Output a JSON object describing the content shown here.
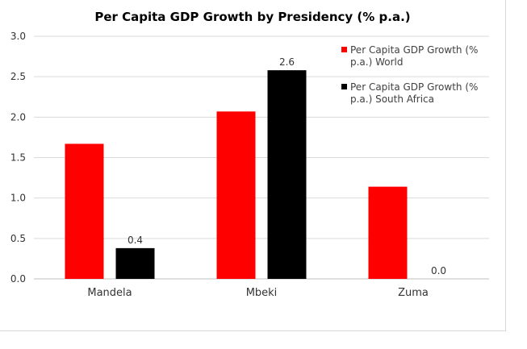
{
  "chart_data": {
    "type": "bar",
    "title": "Per Capita GDP Growth by Presidency (% p.a.)",
    "categories": [
      "Mandela",
      "Mbeki",
      "Zuma"
    ],
    "series": [
      {
        "name": "Per Capita GDP Growth (% p.a.) World",
        "legend_lines": [
          "Per Capita GDP Growth (%",
          "p.a.) World"
        ],
        "color": "#ff0000",
        "values": [
          1.67,
          2.07,
          1.14
        ],
        "data_labels": [
          null,
          null,
          null
        ]
      },
      {
        "name": "Per Capita GDP Growth (% p.a.) South Africa",
        "legend_lines": [
          "Per Capita GDP Growth (%",
          "p.a.) South Africa"
        ],
        "color": "#000000",
        "values": [
          0.38,
          2.58,
          0.0
        ],
        "data_labels": [
          "0.4",
          "2.6",
          "0.0"
        ]
      }
    ],
    "ylim": [
      0,
      3.0
    ],
    "yticks": [
      "0.0",
      "0.5",
      "1.0",
      "1.5",
      "2.0",
      "2.5",
      "3.0"
    ],
    "ytick_values": [
      0,
      0.5,
      1.0,
      1.5,
      2.0,
      2.5,
      3.0
    ],
    "gridlines": true,
    "legend_position": "top-right",
    "xlabel": "",
    "ylabel": ""
  }
}
